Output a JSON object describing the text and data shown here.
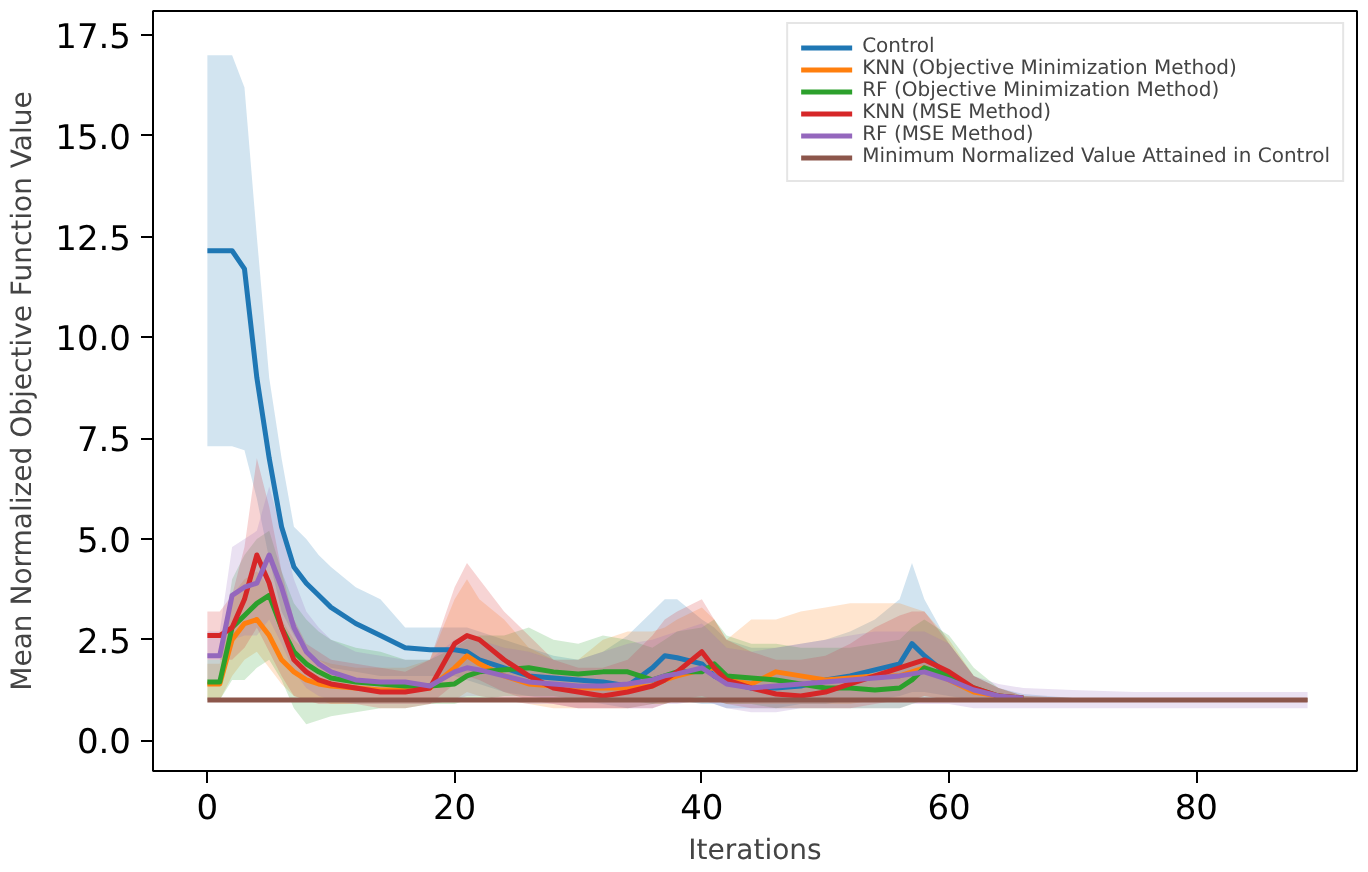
{
  "chart_data": {
    "type": "line",
    "xlabel": "Iterations",
    "ylabel": "Mean Normalized Objective Function Value",
    "x": [
      0,
      1,
      2,
      3,
      4,
      5,
      6,
      7,
      8,
      9,
      10,
      12,
      14,
      16,
      18,
      20,
      21,
      22,
      24,
      26,
      28,
      30,
      32,
      34,
      36,
      37,
      38,
      40,
      41,
      42,
      44,
      46,
      48,
      50,
      52,
      54,
      56,
      57,
      58,
      60,
      62,
      64,
      66,
      70,
      75,
      80,
      85,
      89
    ],
    "xlim": [
      -4.4,
      93
    ],
    "ylim": [
      -0.76,
      18.1
    ],
    "xticks": [
      0,
      20,
      40,
      60,
      80
    ],
    "yticks": [
      {
        "value": 0,
        "label": "0.0"
      },
      2.5,
      {
        "value": 5,
        "label": "5.0"
      },
      7.5,
      {
        "value": 10,
        "label": "10.0"
      },
      12.5,
      {
        "value": 15,
        "label": "15.0"
      },
      17.5
    ],
    "grid": false,
    "legend": "top right",
    "marker": "none",
    "line_style": "solid",
    "series": [
      {
        "name": "Control",
        "color": "#1f77b4",
        "values": [
          12.15,
          12.15,
          12.15,
          11.7,
          9.0,
          7.0,
          5.3,
          4.3,
          3.9,
          3.6,
          3.3,
          2.9,
          2.6,
          2.3,
          2.25,
          2.25,
          2.2,
          2.0,
          1.8,
          1.6,
          1.55,
          1.5,
          1.45,
          1.35,
          1.8,
          2.1,
          2.05,
          1.9,
          1.6,
          1.45,
          1.3,
          1.3,
          1.35,
          1.5,
          1.6,
          1.75,
          1.9,
          2.4,
          2.1,
          1.6,
          null,
          null,
          null,
          null,
          null,
          null,
          null,
          null
        ],
        "lower": [
          7.3,
          7.3,
          7.3,
          7.2,
          6.0,
          4.5,
          3.2,
          2.6,
          2.2,
          2.0,
          1.8,
          1.7,
          1.6,
          1.6,
          1.6,
          1.6,
          1.5,
          1.4,
          1.2,
          1.1,
          1.0,
          1.0,
          0.9,
          0.8,
          0.9,
          1.0,
          1.0,
          0.9,
          0.9,
          0.8,
          0.8,
          0.8,
          0.9,
          0.9,
          1.0,
          1.0,
          1.1,
          1.2,
          1.2,
          1.1,
          1.0,
          0.95,
          0.95,
          0.95,
          0.95,
          0.95,
          0.95,
          0.95
        ],
        "upper": [
          17.0,
          17.0,
          17.0,
          16.2,
          12.5,
          9.0,
          7.0,
          5.3,
          5.0,
          4.6,
          4.3,
          3.8,
          3.5,
          2.8,
          2.8,
          2.8,
          2.8,
          2.7,
          2.5,
          2.3,
          2.1,
          2.0,
          2.2,
          2.6,
          3.2,
          3.5,
          3.5,
          3.0,
          2.8,
          2.5,
          2.3,
          2.3,
          2.4,
          2.5,
          2.7,
          3.0,
          3.5,
          4.4,
          3.5,
          2.4,
          1.6,
          1.3,
          1.15,
          1.05,
          1.05,
          1.05,
          1.05,
          1.05
        ]
      },
      {
        "name": "KNN (Objective Minimization Method)",
        "color": "#ff7f0e",
        "values": [
          1.4,
          1.4,
          2.5,
          2.9,
          3.0,
          2.6,
          2.0,
          1.7,
          1.5,
          1.4,
          1.35,
          1.3,
          1.25,
          1.25,
          1.3,
          1.8,
          2.1,
          1.9,
          1.6,
          1.4,
          1.35,
          1.3,
          1.3,
          1.3,
          1.35,
          1.5,
          1.6,
          1.75,
          1.8,
          1.5,
          1.4,
          1.7,
          1.6,
          1.5,
          1.55,
          1.6,
          1.6,
          1.7,
          1.8,
          1.5,
          1.2,
          1.1,
          1.05,
          null,
          null,
          null,
          null,
          null
        ],
        "lower": [
          1.0,
          1.0,
          1.6,
          2.0,
          2.2,
          1.8,
          1.4,
          1.1,
          1.0,
          1.0,
          0.9,
          0.9,
          0.9,
          0.9,
          0.9,
          1.0,
          1.2,
          1.1,
          1.0,
          0.9,
          0.8,
          0.8,
          0.8,
          0.8,
          0.9,
          0.9,
          1.0,
          1.0,
          1.0,
          0.9,
          0.9,
          0.9,
          0.9,
          0.9,
          0.9,
          1.0,
          1.0,
          1.0,
          1.1,
          1.0,
          0.95,
          0.95,
          0.95,
          0.95,
          0.95,
          0.95,
          0.95,
          0.95
        ],
        "upper": [
          1.9,
          1.9,
          3.6,
          4.0,
          4.2,
          3.8,
          3.0,
          2.5,
          2.2,
          2.0,
          1.9,
          1.8,
          1.8,
          1.8,
          2.0,
          3.5,
          4.0,
          3.5,
          3.0,
          2.3,
          2.0,
          2.0,
          2.5,
          2.7,
          2.7,
          2.8,
          3.0,
          3.3,
          3.0,
          2.5,
          3.0,
          3.0,
          3.2,
          3.3,
          3.4,
          3.4,
          3.4,
          3.3,
          3.2,
          2.5,
          1.6,
          1.3,
          1.1,
          1.05,
          1.05,
          1.05,
          1.05,
          1.05
        ]
      },
      {
        "name": "RF (Objective Minimization Method)",
        "color": "#2ca02c",
        "values": [
          1.45,
          1.45,
          2.8,
          3.1,
          3.4,
          3.6,
          2.8,
          2.2,
          1.9,
          1.7,
          1.55,
          1.45,
          1.4,
          1.35,
          1.35,
          1.4,
          1.6,
          1.7,
          1.75,
          1.8,
          1.7,
          1.65,
          1.7,
          1.7,
          1.5,
          1.6,
          1.7,
          1.7,
          1.9,
          1.6,
          1.55,
          1.5,
          1.4,
          1.3,
          1.3,
          1.25,
          1.3,
          1.5,
          1.8,
          1.6,
          1.3,
          1.1,
          1.05,
          null,
          null,
          null,
          null,
          null
        ],
        "lower": [
          1.0,
          1.0,
          1.5,
          1.5,
          1.8,
          2.0,
          1.5,
          0.8,
          0.4,
          0.5,
          0.6,
          0.7,
          0.8,
          0.8,
          0.9,
          0.9,
          1.0,
          1.0,
          1.1,
          1.1,
          1.1,
          1.0,
          1.0,
          1.0,
          0.9,
          0.9,
          1.0,
          1.0,
          1.0,
          0.9,
          0.9,
          0.8,
          0.8,
          0.8,
          0.8,
          0.8,
          0.8,
          0.9,
          1.0,
          1.0,
          0.95,
          0.95,
          0.95,
          0.95,
          0.95,
          0.95,
          0.95,
          0.95
        ],
        "upper": [
          2.0,
          2.0,
          4.0,
          4.6,
          5.0,
          5.2,
          4.2,
          3.4,
          3.0,
          2.7,
          2.5,
          2.3,
          2.2,
          2.0,
          2.0,
          2.3,
          2.5,
          2.6,
          2.6,
          2.8,
          2.5,
          2.4,
          2.6,
          2.5,
          2.3,
          2.5,
          2.7,
          2.8,
          3.0,
          2.6,
          2.4,
          2.4,
          2.3,
          2.3,
          2.3,
          2.4,
          2.5,
          2.8,
          3.0,
          2.6,
          1.8,
          1.3,
          1.1,
          1.05,
          1.05,
          1.05,
          1.05,
          1.05
        ]
      },
      {
        "name": "KNN (MSE Method)",
        "color": "#d62728",
        "values": [
          2.6,
          2.6,
          2.8,
          3.5,
          4.6,
          3.9,
          2.8,
          2.0,
          1.7,
          1.5,
          1.4,
          1.3,
          1.2,
          1.2,
          1.3,
          2.4,
          2.6,
          2.5,
          2.0,
          1.6,
          1.3,
          1.2,
          1.1,
          1.2,
          1.35,
          1.5,
          1.7,
          2.2,
          1.8,
          1.5,
          1.3,
          1.15,
          1.1,
          1.2,
          1.4,
          1.6,
          1.8,
          1.9,
          2.0,
          1.7,
          1.3,
          1.1,
          1.05,
          null,
          null,
          null,
          null,
          null
        ],
        "lower": [
          2.0,
          2.0,
          2.0,
          2.3,
          2.8,
          2.2,
          1.6,
          1.1,
          1.0,
          0.9,
          0.9,
          0.9,
          0.8,
          0.8,
          0.9,
          1.4,
          1.6,
          1.5,
          1.2,
          1.0,
          0.9,
          0.8,
          0.8,
          0.8,
          0.8,
          0.9,
          1.0,
          1.1,
          1.0,
          0.9,
          0.8,
          0.8,
          0.8,
          0.8,
          0.8,
          0.9,
          1.0,
          1.0,
          1.1,
          1.0,
          0.95,
          0.95,
          0.95,
          0.95,
          0.95,
          0.95,
          0.95,
          0.95
        ],
        "upper": [
          3.2,
          3.2,
          3.6,
          4.8,
          7.0,
          5.8,
          4.2,
          3.0,
          2.4,
          2.2,
          2.0,
          1.9,
          1.8,
          1.7,
          2.0,
          3.8,
          4.4,
          4.0,
          3.2,
          2.6,
          2.0,
          1.8,
          1.8,
          2.0,
          2.6,
          3.0,
          3.2,
          3.5,
          3.0,
          2.5,
          2.2,
          2.0,
          2.0,
          2.1,
          2.4,
          2.8,
          3.1,
          3.2,
          3.2,
          2.4,
          1.6,
          1.3,
          1.1,
          1.05,
          1.05,
          1.05,
          1.05,
          1.05
        ]
      },
      {
        "name": "RF (MSE Method)",
        "color": "#9467bd",
        "values": [
          2.1,
          2.1,
          3.6,
          3.8,
          3.9,
          4.6,
          3.8,
          2.8,
          2.2,
          1.9,
          1.7,
          1.5,
          1.45,
          1.45,
          1.35,
          1.7,
          1.8,
          1.75,
          1.6,
          1.45,
          1.4,
          1.35,
          1.35,
          1.4,
          1.5,
          1.6,
          1.65,
          1.8,
          1.6,
          1.4,
          1.3,
          1.35,
          1.4,
          1.45,
          1.5,
          1.55,
          1.6,
          1.65,
          1.7,
          1.5,
          1.25,
          1.1,
          1.05,
          null,
          null,
          null,
          null,
          null
        ],
        "lower": [
          1.5,
          1.5,
          2.5,
          2.6,
          2.6,
          3.0,
          2.4,
          1.7,
          1.3,
          1.1,
          1.0,
          0.9,
          0.9,
          0.9,
          0.9,
          1.0,
          1.1,
          1.1,
          1.0,
          0.9,
          0.9,
          0.8,
          0.8,
          0.8,
          0.8,
          0.9,
          0.9,
          1.0,
          0.9,
          0.8,
          0.7,
          0.7,
          0.8,
          0.8,
          0.8,
          0.8,
          0.8,
          0.9,
          0.9,
          0.9,
          0.8,
          0.8,
          0.8,
          0.8,
          0.8,
          0.8,
          0.8,
          0.8
        ],
        "upper": [
          2.7,
          2.7,
          4.8,
          5.0,
          5.2,
          6.3,
          5.2,
          4.0,
          3.2,
          2.8,
          2.5,
          2.2,
          2.1,
          2.0,
          2.0,
          2.5,
          2.6,
          2.5,
          2.3,
          2.2,
          2.0,
          2.0,
          2.2,
          2.4,
          2.5,
          2.6,
          2.7,
          2.9,
          2.6,
          2.3,
          2.2,
          2.3,
          2.4,
          2.5,
          2.6,
          2.7,
          2.7,
          2.7,
          2.7,
          2.4,
          1.6,
          1.4,
          1.3,
          1.25,
          1.2,
          1.2,
          1.2,
          1.2
        ]
      },
      {
        "name": "Minimum Normalized Value Attained in Control",
        "color": "#8c564b",
        "x": [
          0,
          89
        ],
        "values": [
          1.0,
          1.0
        ]
      }
    ]
  }
}
